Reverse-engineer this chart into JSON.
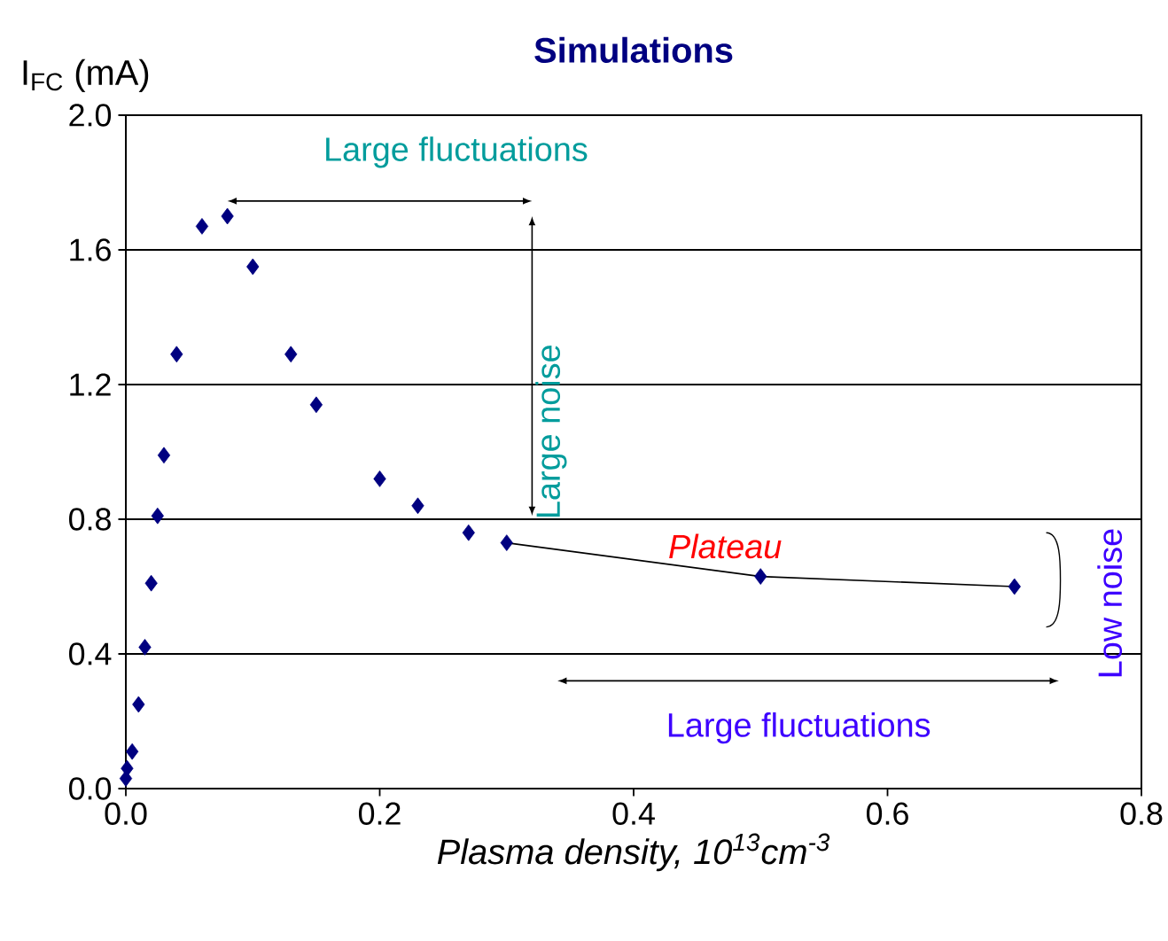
{
  "chart_data": {
    "type": "scatter",
    "title": "Simulations",
    "xlabel": "Plasma density, 10$^{13}$cm$^{-3}$",
    "ylabel": "I$_{FC}$ (mA)",
    "series": [
      {
        "color": "#000080",
        "marker": "diamond",
        "x": [
          0.0,
          0.001,
          0.005,
          0.01,
          0.015,
          0.02,
          0.025,
          0.03,
          0.04,
          0.06,
          0.08,
          0.1,
          0.13,
          0.15,
          0.2,
          0.23,
          0.27,
          0.3,
          0.5,
          0.7
        ],
        "values": [
          0.03,
          0.06,
          0.11,
          0.25,
          0.42,
          0.61,
          0.81,
          0.99,
          1.29,
          1.67,
          1.7,
          1.55,
          1.29,
          1.14,
          0.92,
          0.84,
          0.76,
          0.73,
          0.63,
          0.6
        ]
      },
      {
        "type": "line",
        "color": "#000000",
        "x": [
          0.3,
          0.5,
          0.7
        ],
        "values": [
          0.73,
          0.63,
          0.6
        ]
      }
    ],
    "xlim": [
      0,
      0.8
    ],
    "ylim": [
      0,
      2.0
    ],
    "xticks": [
      {
        "value": 0,
        "label": "0.0"
      },
      0.2,
      0.4,
      0.6,
      0.8
    ],
    "yticks": [
      {
        "value": 0,
        "label": "0.0"
      },
      0.4,
      0.8,
      1.2,
      1.6,
      {
        "value": 2,
        "label": "2.0"
      }
    ],
    "grid": "y",
    "annotations": [
      "Large fluctuations",
      "Large noise",
      "Plateau",
      "Low noise",
      "Large fluctuations"
    ]
  }
}
